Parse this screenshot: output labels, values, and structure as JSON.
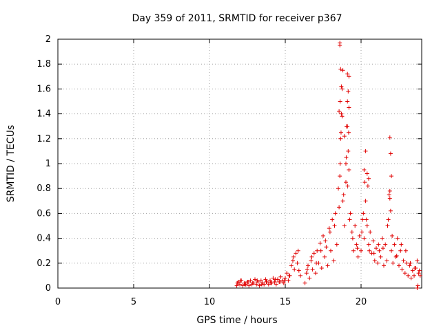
{
  "chart_data": {
    "type": "scatter",
    "title": "Day 359 of 2011, SRMTID for receiver p367",
    "xlabel": "GPS time / hours",
    "ylabel": "SRMTID / TECUs",
    "xlim": [
      0,
      24
    ],
    "ylim": [
      0,
      2
    ],
    "xticks": [
      0,
      5,
      10,
      15,
      20
    ],
    "xtick_labels": [
      "0",
      "5",
      "10",
      "15",
      "20"
    ],
    "yticks": [
      0,
      0.2,
      0.4,
      0.6,
      0.8,
      1,
      1.2,
      1.4,
      1.6,
      1.8,
      2
    ],
    "ytick_labels": [
      "0",
      "0.2",
      "0.4",
      "0.6",
      "0.8",
      "1",
      "1.2",
      "1.4",
      "1.6",
      "1.8",
      "2"
    ],
    "grid": true,
    "marker": "+",
    "color": "#e00000",
    "series": [
      {
        "name": "SRMTID p367",
        "x": [
          11.8,
          11.9,
          12.0,
          12.1,
          12.2,
          12.3,
          12.4,
          12.5,
          12.6,
          12.7,
          12.8,
          12.9,
          13.0,
          13.1,
          13.2,
          13.3,
          13.4,
          13.5,
          13.6,
          13.7,
          13.8,
          13.9,
          14.0,
          14.1,
          14.2,
          14.3,
          14.4,
          14.5,
          14.6,
          14.7,
          14.8,
          14.9,
          15.0,
          15.1,
          15.2,
          15.3,
          15.4,
          15.5,
          15.6,
          15.7,
          15.8,
          15.9,
          16.0,
          16.3,
          16.4,
          16.5,
          16.6,
          16.7,
          16.8,
          16.9,
          17.0,
          17.1,
          17.2,
          17.3,
          17.4,
          17.5,
          17.6,
          17.7,
          17.8,
          17.9,
          18.0,
          18.1,
          18.2,
          18.3,
          18.4,
          18.5,
          18.6,
          18.65,
          18.7,
          18.75,
          18.8,
          18.9,
          19.0,
          19.05,
          19.1,
          19.15,
          19.2,
          19.3,
          19.4,
          19.5,
          19.6,
          19.7,
          19.8,
          19.9,
          20.0,
          20.1,
          20.2,
          20.3,
          20.4,
          20.5,
          20.6,
          20.7,
          20.8,
          20.9,
          21.0,
          21.1,
          21.2,
          21.3,
          21.4,
          21.5,
          21.6,
          21.7,
          21.8,
          21.9,
          22.0,
          22.1,
          22.2,
          22.3,
          22.4,
          22.5,
          22.6,
          22.7,
          22.8,
          22.9,
          23.0,
          23.1,
          23.2,
          23.3,
          23.4,
          23.5,
          23.6,
          23.7,
          23.8,
          23.9,
          11.85,
          12.05,
          12.35,
          12.55,
          12.85,
          13.15,
          13.45,
          13.75,
          14.05,
          14.35,
          14.65,
          14.95,
          15.25,
          15.55,
          15.85,
          16.45,
          16.75,
          17.05,
          17.35,
          17.65,
          17.95,
          18.25,
          18.55,
          18.62,
          18.68,
          18.85,
          19.02,
          19.12,
          19.18,
          19.25,
          19.45,
          19.75,
          20.05,
          20.15,
          20.25,
          20.35,
          20.55,
          20.85,
          21.15,
          21.45,
          21.75,
          21.95,
          22.05,
          22.35,
          22.65,
          22.95,
          23.25,
          23.55,
          23.85,
          18.6,
          18.65,
          18.7,
          18.55,
          18.8,
          19.1,
          19.15,
          19.2,
          19.05,
          20.3,
          20.4,
          20.5,
          21.9,
          21.95,
          22.0,
          21.85,
          18.6,
          18.62,
          18.75,
          18.9,
          19.0,
          19.1,
          19.2,
          20.2,
          20.45,
          21.9,
          23.7,
          23.75
        ],
        "y": [
          0.02,
          0.05,
          0.03,
          0.06,
          0.02,
          0.04,
          0.03,
          0.05,
          0.02,
          0.06,
          0.03,
          0.04,
          0.07,
          0.03,
          0.05,
          0.02,
          0.06,
          0.04,
          0.03,
          0.07,
          0.05,
          0.03,
          0.06,
          0.04,
          0.08,
          0.05,
          0.03,
          0.07,
          0.05,
          0.09,
          0.06,
          0.04,
          0.08,
          0.12,
          0.06,
          0.1,
          0.18,
          0.22,
          0.15,
          0.28,
          0.2,
          0.14,
          0.1,
          0.04,
          0.12,
          0.18,
          0.08,
          0.22,
          0.15,
          0.28,
          0.12,
          0.3,
          0.2,
          0.36,
          0.16,
          0.42,
          0.25,
          0.33,
          0.18,
          0.48,
          0.3,
          0.55,
          0.22,
          0.6,
          0.35,
          0.8,
          0.9,
          1.2,
          1.4,
          1.6,
          0.7,
          0.5,
          0.85,
          1.3,
          1.5,
          1.1,
          0.95,
          0.6,
          0.45,
          0.3,
          0.5,
          0.35,
          0.25,
          0.42,
          0.3,
          0.55,
          0.4,
          0.7,
          0.5,
          0.35,
          0.45,
          0.28,
          0.38,
          0.22,
          0.32,
          0.2,
          0.3,
          0.25,
          0.4,
          0.18,
          0.35,
          0.22,
          0.55,
          0.72,
          0.3,
          0.2,
          0.35,
          0.25,
          0.4,
          0.18,
          0.3,
          0.15,
          0.22,
          0.12,
          0.2,
          0.1,
          0.18,
          0.08,
          0.14,
          0.1,
          0.16,
          0.22,
          0.12,
          0.1,
          0.04,
          0.06,
          0.03,
          0.05,
          0.04,
          0.06,
          0.03,
          0.05,
          0.04,
          0.07,
          0.05,
          0.06,
          0.1,
          0.25,
          0.3,
          0.15,
          0.25,
          0.2,
          0.3,
          0.38,
          0.45,
          0.5,
          0.65,
          1.0,
          1.25,
          0.75,
          1.05,
          0.82,
          1.25,
          0.55,
          0.4,
          0.32,
          0.45,
          0.6,
          0.85,
          0.55,
          0.3,
          0.28,
          0.35,
          0.32,
          0.5,
          0.62,
          0.42,
          0.26,
          0.35,
          0.3,
          0.2,
          0.16,
          0.14,
          1.95,
          1.76,
          1.62,
          1.42,
          1.75,
          1.72,
          1.58,
          1.7,
          1.3,
          1.1,
          0.92,
          0.88,
          1.21,
          1.08,
          0.9,
          0.75,
          1.97,
          1.5,
          1.38,
          1.22,
          1.0,
          1.3,
          1.45,
          0.95,
          0.82,
          0.78,
          0.0,
          0.02
        ]
      }
    ]
  }
}
